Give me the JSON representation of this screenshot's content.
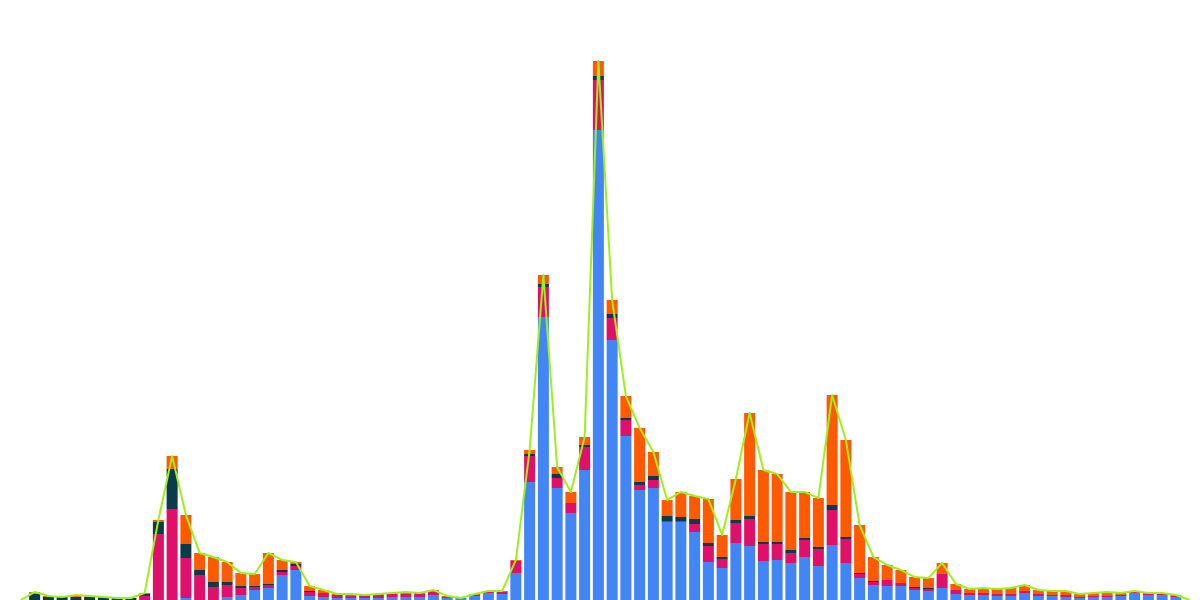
{
  "chart_data": {
    "type": "bar",
    "stacked": true,
    "categories": [
      null,
      null,
      null,
      null,
      null,
      null,
      null,
      null,
      null,
      null,
      null,
      null,
      null,
      null,
      null,
      null,
      null,
      null,
      null,
      null,
      null,
      null,
      null,
      null,
      null,
      null,
      null,
      null,
      null,
      null,
      null,
      null,
      null,
      null,
      null,
      null,
      null,
      null,
      null,
      null,
      null,
      null,
      null,
      null,
      null,
      null,
      null,
      null,
      null,
      null,
      null,
      null,
      null,
      null,
      null,
      null,
      null,
      null,
      null,
      null,
      null,
      null,
      null,
      null,
      null,
      null,
      null,
      null,
      null,
      null,
      null,
      null,
      null,
      null,
      null,
      null,
      null,
      null,
      null,
      null,
      null,
      null,
      null,
      null,
      null,
      null
    ],
    "ylim": [
      0,
      540
    ],
    "series": [
      {
        "color": "#4285f4",
        "values": [
          0,
          0,
          0,
          0,
          0,
          0,
          0,
          0,
          0,
          0,
          0,
          0,
          2,
          0,
          0,
          3,
          5,
          10,
          12,
          25,
          30,
          4,
          3,
          2,
          2,
          2,
          2,
          3,
          3,
          3,
          5,
          2,
          2,
          4,
          7,
          6,
          27,
          118,
          283,
          112,
          87,
          130,
          470,
          260,
          164,
          110,
          112,
          78,
          78,
          68,
          38,
          32,
          57,
          54,
          39,
          40,
          37,
          43,
          34,
          55,
          37,
          22,
          15,
          14,
          14,
          10,
          9,
          12,
          6,
          5,
          5,
          4,
          4,
          7,
          4,
          4,
          3,
          2,
          3,
          3,
          4,
          7,
          5,
          5,
          3,
          0
        ]
      },
      {
        "color": "#e0106a",
        "values": [
          0,
          0,
          0,
          0,
          0,
          0,
          0,
          0,
          0,
          4,
          66,
          91,
          40,
          25,
          13,
          12,
          7,
          3,
          3,
          3,
          4,
          4,
          4,
          3,
          2,
          2,
          3,
          3,
          3,
          3,
          3,
          1,
          0,
          1,
          1,
          2,
          12,
          26,
          30,
          10,
          10,
          23,
          50,
          22,
          16,
          5,
          8,
          1,
          1,
          8,
          16,
          9,
          20,
          27,
          17,
          16,
          10,
          17,
          17,
          35,
          24,
          4,
          3,
          6,
          3,
          2,
          2,
          14,
          4,
          2,
          2,
          2,
          2,
          2,
          2,
          1,
          2,
          1,
          1,
          1,
          1,
          1,
          1,
          1,
          1,
          0
        ]
      },
      {
        "color": "#0b3a4a",
        "values": [
          0,
          6,
          3,
          3,
          3,
          3,
          2,
          2,
          2,
          2,
          12,
          40,
          14,
          5,
          5,
          3,
          2,
          1,
          1,
          2,
          2,
          1,
          0,
          0,
          0,
          0,
          0,
          0,
          0,
          0,
          0,
          0,
          0,
          0,
          0,
          0,
          0,
          2,
          3,
          4,
          0,
          2,
          4,
          4,
          2,
          3,
          4,
          5,
          4,
          5,
          3,
          2,
          3,
          3,
          2,
          2,
          3,
          2,
          2,
          5,
          2,
          1,
          1,
          0,
          0,
          1,
          1,
          0,
          0,
          0,
          0,
          0,
          0,
          0,
          0,
          0,
          0,
          0,
          0,
          0,
          0,
          0,
          0,
          0,
          0,
          0
        ]
      },
      {
        "color": "#ff5a00",
        "values": [
          0,
          2,
          1,
          0,
          2,
          1,
          1,
          0,
          0,
          1,
          2,
          13,
          29,
          17,
          25,
          20,
          13,
          12,
          31,
          10,
          2,
          5,
          3,
          1,
          2,
          1,
          1,
          1,
          2,
          1,
          2,
          1,
          0,
          1,
          1,
          1,
          1,
          4,
          9,
          7,
          11,
          8,
          15,
          14,
          22,
          54,
          24,
          16,
          25,
          23,
          44,
          22,
          41,
          103,
          72,
          68,
          58,
          46,
          49,
          110,
          97,
          48,
          24,
          15,
          13,
          10,
          10,
          11,
          6,
          4,
          5,
          5,
          6,
          6,
          4,
          4,
          4,
          3,
          3,
          4,
          2,
          1,
          1,
          1,
          1,
          0
        ]
      },
      {
        "type": "line",
        "color": "#9ef01a",
        "values": [
          0,
          8,
          4,
          3,
          5,
          4,
          3,
          2,
          2,
          7,
          80,
          144,
          85,
          47,
          43,
          38,
          27,
          26,
          47,
          40,
          38,
          14,
          10,
          6,
          6,
          5,
          6,
          7,
          8,
          7,
          10,
          4,
          2,
          6,
          9,
          9,
          40,
          150,
          325,
          133,
          108,
          163,
          539,
          300,
          204,
          172,
          148,
          100,
          108,
          104,
          101,
          65,
          121,
          187,
          130,
          126,
          108,
          108,
          102,
          205,
          160,
          75,
          43,
          35,
          30,
          23,
          22,
          37,
          16,
          11,
          12,
          11,
          12,
          15,
          10,
          9,
          9,
          6,
          7,
          8,
          7,
          9,
          7,
          7,
          5,
          0
        ]
      }
    ]
  }
}
